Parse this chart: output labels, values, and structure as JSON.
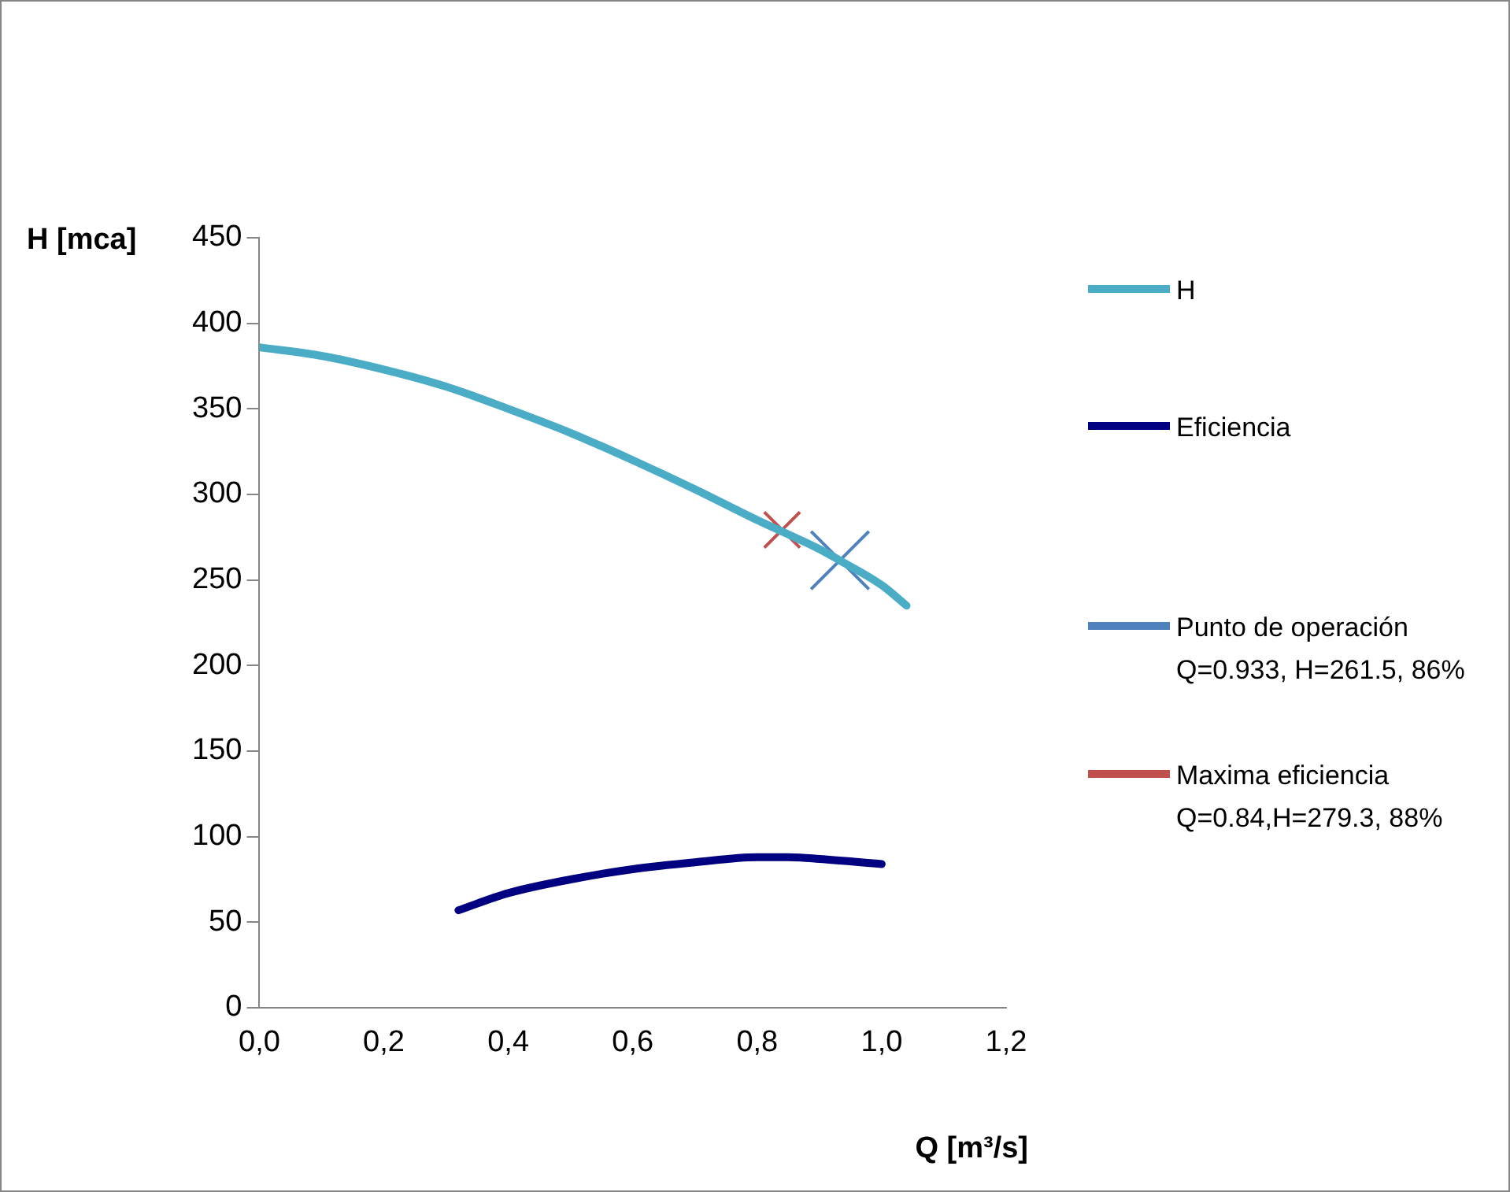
{
  "chart_data": {
    "type": "line",
    "xlabel": "Q [m³/s]",
    "ylabel": "H [mca]",
    "xlim": [
      0,
      1.2
    ],
    "xticks": [
      {
        "value": 0,
        "label": "0,0"
      },
      {
        "value": 0.2,
        "label": "0,2"
      },
      {
        "value": 0.4,
        "label": "0,4"
      },
      {
        "value": 0.6,
        "label": "0,6"
      },
      {
        "value": 0.8,
        "label": "0,8"
      },
      {
        "value": 1,
        "label": "1,0"
      },
      {
        "value": 1.2,
        "label": "1,2"
      }
    ],
    "ylim": [
      0,
      450
    ],
    "yticks": [
      0,
      50,
      100,
      150,
      200,
      250,
      300,
      350,
      400,
      450
    ],
    "grid": false,
    "legend": "right",
    "series": [
      {
        "name": "H",
        "color": "#4bacc6",
        "marker": "none",
        "x": [
          0,
          0.1,
          0.2,
          0.3,
          0.4,
          0.5,
          0.6,
          0.7,
          0.8,
          0.9,
          0.93,
          1.0,
          1.04
        ],
        "values": [
          386,
          381,
          373,
          363,
          350,
          336,
          320,
          303,
          285,
          268,
          262,
          247,
          235
        ]
      },
      {
        "name": "Eficiencia",
        "color": "#000080",
        "marker": "none",
        "x": [
          0.32,
          0.4,
          0.5,
          0.6,
          0.7,
          0.8,
          0.85,
          0.9,
          1.0
        ],
        "values": [
          57,
          67,
          75,
          81,
          85,
          88,
          88,
          87,
          84
        ]
      },
      {
        "name": "Punto de operación Q=0.933, H=261.5, 86%",
        "type": "scatter",
        "color": "#4f81bd",
        "marker": "cross",
        "x": [
          0.933
        ],
        "values": [
          261.5
        ]
      },
      {
        "name": "Maxima eficiencia Q=0.84,H=279.3, 88%",
        "type": "scatter",
        "color": "#c0504d",
        "marker": "cross",
        "x": [
          0.84
        ],
        "values": [
          279.3
        ]
      }
    ]
  }
}
